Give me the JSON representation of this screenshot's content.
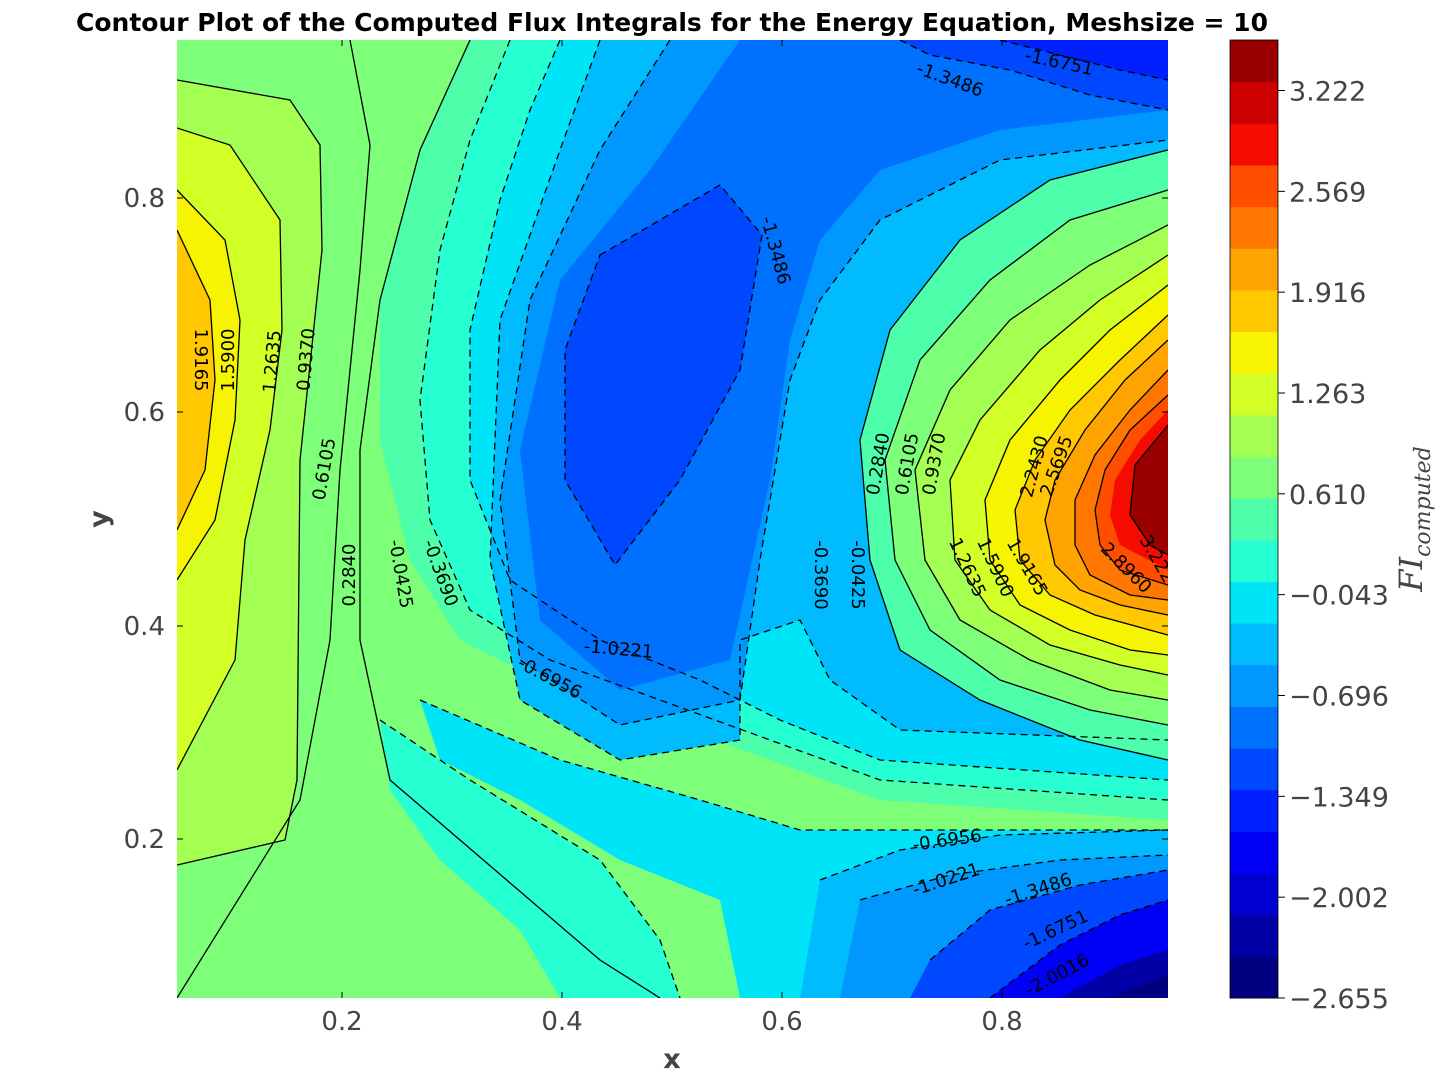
{
  "chart_data": {
    "type": "contour",
    "title": "Contour Plot of the Computed Flux Integrals for the Energy Equation, Meshsize = 10",
    "xlabel": "x",
    "ylabel": "y",
    "xlim": [
      0.05,
      0.95
    ],
    "ylim": [
      0.05,
      0.95
    ],
    "x_ticks": [
      "0.2",
      "0.4",
      "0.6",
      "0.8"
    ],
    "y_ticks": [
      "0.2",
      "0.4",
      "0.6",
      "0.8"
    ],
    "grid": false,
    "colormap": "jet",
    "colorbar": {
      "label_base": "FI",
      "label_sub": "computed",
      "range": [
        -2.655,
        3.549
      ],
      "ticks": [
        "3.222",
        "2.569",
        "1.916",
        "1.263",
        "0.610",
        "−0.043",
        "−0.696",
        "−1.349",
        "−2.002",
        "−2.655"
      ],
      "levels": 19,
      "colors": [
        "#000080",
        "#0000a4",
        "#0000d1",
        "#0000f6",
        "#0020ff",
        "#0048ff",
        "#0070ff",
        "#0098ff",
        "#00bcff",
        "#00e4f8",
        "#26ffd1",
        "#4dffaa",
        "#7dff7a",
        "#a4ff53",
        "#d1ff26",
        "#f6f400",
        "#ffc800",
        "#ffa300",
        "#ff7700",
        "#ff4e00",
        "#f60b00",
        "#cd0000",
        "#9a0000"
      ]
    },
    "contour_labels": [
      "1.9165",
      "1.5900",
      "1.2635",
      "0.9370",
      "0.6105",
      "0.2840",
      "-0.0425",
      "-0.3690",
      "-0.6956",
      "-1.0221",
      "-1.3486",
      "-1.3486",
      "-1.6751",
      "-1.3486",
      "-1.6751",
      "-2.0016",
      "-1.0221",
      "-0.6956",
      "-0.3690",
      "-0.0425",
      "0.2840",
      "0.6105",
      "0.9370",
      "1.2635",
      "1.5900",
      "1.9165",
      "2.2430",
      "2.5695",
      "2.8960",
      "3.222"
    ],
    "field_samples": {
      "description": "computed flux integral at mesh points",
      "points": [
        {
          "x": 0.05,
          "y": 0.55,
          "v": 2.05
        },
        {
          "x": 0.55,
          "y": 0.62,
          "v": -1.55
        },
        {
          "x": 0.95,
          "y": 0.52,
          "v": 3.55
        },
        {
          "x": 0.95,
          "y": 0.05,
          "v": -2.65
        },
        {
          "x": 0.95,
          "y": 0.95,
          "v": -2.2
        },
        {
          "x": 0.55,
          "y": 0.25,
          "v": -0.55
        },
        {
          "x": 0.25,
          "y": 0.1,
          "v": 0.45
        },
        {
          "x": 0.28,
          "y": 0.95,
          "v": 0.45
        }
      ]
    }
  }
}
